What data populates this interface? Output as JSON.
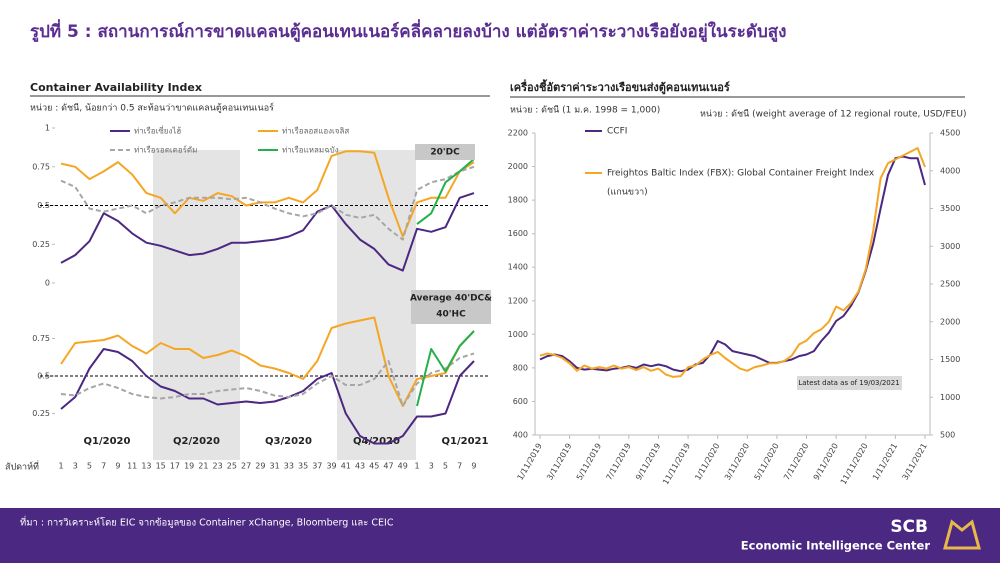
{
  "title": "รูปที่ 5 : สถานการณ์การขาดแคลนตู้คอนเทนเนอร์คลี่คลายลงบ้าง แต่อัตราค่าระวางเรือยังอยู่ในระดับสูง",
  "footer": {
    "source": "ที่มา : การวิเคราะห์โดย EIC จากข้อมูลของ Container xChange, Bloomberg และ CEIC",
    "logo": "SCB",
    "logo_sub": "Economic Intelligence Center"
  },
  "chart_data": [
    {
      "type": "line",
      "title": "Container Availability Index",
      "subtitle": "หน่วย : ดัชนี, น้อยกว่า 0.5 สะท้อนว่าขาดแคลนตู้คอนเทนเนอร์",
      "annotation": [
        "20'DC"
      ],
      "ylim": [
        0,
        1
      ],
      "yticks": [
        0,
        0.25,
        0.5,
        0.75,
        1
      ],
      "ref_line": 0.5,
      "series": [
        {
          "name": "ท่าเรือเซี่ยงไฮ้",
          "color": "#4b2882",
          "values": [
            0.13,
            0.18,
            0.27,
            0.45,
            0.4,
            0.32,
            0.26,
            0.24,
            0.21,
            0.18,
            0.19,
            0.22,
            0.26,
            0.26,
            0.27,
            0.28,
            0.3,
            0.34,
            0.46,
            0.5,
            0.38,
            0.28,
            0.22,
            0.12,
            0.08,
            0.35,
            0.33,
            0.36,
            0.55,
            0.58
          ]
        },
        {
          "name": "ท่าเรือลอสแองเจลิส",
          "color": "#f5a623",
          "values": [
            0.77,
            0.75,
            0.67,
            0.72,
            0.78,
            0.7,
            0.58,
            0.55,
            0.45,
            0.55,
            0.53,
            0.58,
            0.56,
            0.5,
            0.52,
            0.52,
            0.55,
            0.52,
            0.6,
            0.82,
            0.85,
            0.85,
            0.84,
            0.55,
            0.3,
            0.52,
            0.55,
            0.55,
            0.72,
            0.78
          ]
        },
        {
          "name": "ท่าเรือรอตเตอร์ดัม",
          "color": "#a6a6a6",
          "dashed": true,
          "values": [
            0.66,
            0.62,
            0.48,
            0.46,
            0.48,
            0.5,
            0.45,
            0.5,
            0.52,
            0.55,
            0.55,
            0.55,
            0.54,
            0.55,
            0.52,
            0.48,
            0.45,
            0.43,
            0.45,
            0.5,
            0.44,
            0.42,
            0.44,
            0.35,
            0.28,
            0.6,
            0.65,
            0.67,
            0.72,
            0.75
          ]
        },
        {
          "name": "ท่าเรือแหลมฉบัง",
          "color": "#22b14c",
          "values": [
            null,
            null,
            null,
            null,
            null,
            null,
            null,
            null,
            null,
            null,
            null,
            null,
            null,
            null,
            null,
            null,
            null,
            null,
            null,
            null,
            null,
            null,
            null,
            null,
            null,
            0.38,
            0.45,
            0.65,
            0.72,
            0.8
          ]
        }
      ]
    },
    {
      "type": "line",
      "annotation": [
        "Average 40'DC&",
        "40'HC"
      ],
      "ylim": [
        0,
        1
      ],
      "yticks": [
        0.25,
        0.5,
        0.75
      ],
      "ref_line": 0.5,
      "xlabel": "สัปดาห์ที่",
      "categories": [
        "1",
        "3",
        "5",
        "7",
        "9",
        "11",
        "13",
        "15",
        "17",
        "19",
        "21",
        "23",
        "25",
        "27",
        "29",
        "31",
        "33",
        "35",
        "37",
        "39",
        "41",
        "43",
        "45",
        "47",
        "49",
        "1",
        "3",
        "5",
        "7",
        "9"
      ],
      "quarters": [
        {
          "label": "Q1/2020",
          "shaded": false
        },
        {
          "label": "Q2/2020",
          "shaded": true
        },
        {
          "label": "Q3/2020",
          "shaded": false
        },
        {
          "label": "Q4/2020",
          "shaded": true
        },
        {
          "label": "Q1/2021",
          "shaded": false
        }
      ],
      "series": [
        {
          "color": "#4b2882",
          "values": [
            0.28,
            0.36,
            0.55,
            0.68,
            0.66,
            0.6,
            0.5,
            0.43,
            0.4,
            0.35,
            0.35,
            0.31,
            0.32,
            0.33,
            0.32,
            0.33,
            0.36,
            0.4,
            0.48,
            0.52,
            0.25,
            0.1,
            0.05,
            0.05,
            0.1,
            0.23,
            0.23,
            0.25,
            0.5,
            0.6
          ]
        },
        {
          "color": "#f5a623",
          "values": [
            0.58,
            0.72,
            0.73,
            0.74,
            0.77,
            0.7,
            0.65,
            0.72,
            0.68,
            0.68,
            0.62,
            0.64,
            0.67,
            0.63,
            0.57,
            0.55,
            0.52,
            0.48,
            0.6,
            0.82,
            0.85,
            0.87,
            0.89,
            0.5,
            0.3,
            0.48,
            0.5,
            0.52,
            0.7,
            0.8
          ]
        },
        {
          "color": "#a6a6a6",
          "dashed": true,
          "values": [
            0.38,
            0.37,
            0.42,
            0.45,
            0.42,
            0.38,
            0.36,
            0.35,
            0.36,
            0.38,
            0.38,
            0.4,
            0.41,
            0.42,
            0.4,
            0.37,
            0.36,
            0.38,
            0.45,
            0.5,
            0.44,
            0.44,
            0.48,
            0.6,
            0.3,
            0.45,
            0.52,
            0.55,
            0.62,
            0.65
          ]
        },
        {
          "color": "#22b14c",
          "values": [
            null,
            null,
            null,
            null,
            null,
            null,
            null,
            null,
            null,
            null,
            null,
            null,
            null,
            null,
            null,
            null,
            null,
            null,
            null,
            null,
            null,
            null,
            null,
            null,
            null,
            0.3,
            0.68,
            0.53,
            0.7,
            0.8
          ]
        }
      ]
    },
    {
      "type": "line",
      "title": "เครื่องชี้อัตราค่าระวางเรือขนส่งตู้คอนเทนเนอร์",
      "ylabel": "หน่วย : ดัชนี (1 ม.ค. 1998 = 1,000)",
      "y2label": "หน่วย : ดัชนี (weight average of 12 regional route, USD/FEU)",
      "annotation": "Latest data as of 19/03/2021",
      "y2_note": "(แกนขวา)",
      "categories": [
        "1/11/2019",
        null,
        null,
        null,
        "3/11/2019",
        null,
        null,
        null,
        "5/11/2019",
        null,
        null,
        null,
        "7/11/2019",
        null,
        null,
        null,
        "9/11/2019",
        null,
        null,
        null,
        "11/11/2019",
        null,
        null,
        null,
        "1/11/2020",
        null,
        null,
        null,
        "3/11/2020",
        null,
        null,
        null,
        "5/11/2020",
        null,
        null,
        null,
        "7/11/2020",
        null,
        null,
        null,
        "9/11/2020",
        null,
        null,
        null,
        "11/11/2020",
        null,
        null,
        null,
        "1/11/2021",
        null,
        null,
        null,
        "3/11/2021"
      ],
      "ylim": [
        400,
        2200
      ],
      "yticks": [
        400,
        600,
        800,
        1000,
        1200,
        1400,
        1600,
        1800,
        2000,
        2200
      ],
      "y2lim": [
        500,
        4500
      ],
      "y2ticks": [
        500,
        1000,
        1500,
        2000,
        2500,
        3000,
        3500,
        4000,
        4500
      ],
      "series": [
        {
          "name": "CCFI",
          "color": "#4b2882",
          "values": [
            850,
            870,
            880,
            870,
            840,
            800,
            790,
            795,
            790,
            785,
            795,
            800,
            810,
            800,
            820,
            810,
            820,
            810,
            790,
            780,
            790,
            820,
            830,
            880,
            960,
            940,
            900,
            890,
            880,
            870,
            850,
            830,
            830,
            840,
            850,
            870,
            880,
            900,
            960,
            1010,
            1080,
            1110,
            1170,
            1250,
            1380,
            1540,
            1750,
            1950,
            2050,
            2060,
            2050,
            2050,
            1890
          ]
        },
        {
          "name": "Freightos Baltic Index (FBX): Global Container Freight Index",
          "color": "#f5a623",
          "axis": "y2",
          "values": [
            1550,
            1580,
            1560,
            1520,
            1450,
            1350,
            1420,
            1380,
            1400,
            1380,
            1420,
            1380,
            1400,
            1360,
            1400,
            1350,
            1380,
            1300,
            1270,
            1280,
            1400,
            1420,
            1500,
            1560,
            1600,
            1520,
            1450,
            1380,
            1350,
            1400,
            1420,
            1450,
            1450,
            1480,
            1550,
            1700,
            1750,
            1850,
            1900,
            2000,
            2200,
            2150,
            2250,
            2400,
            2700,
            3200,
            3900,
            4100,
            4150,
            4200,
            4250,
            4300,
            4050
          ]
        }
      ]
    }
  ]
}
